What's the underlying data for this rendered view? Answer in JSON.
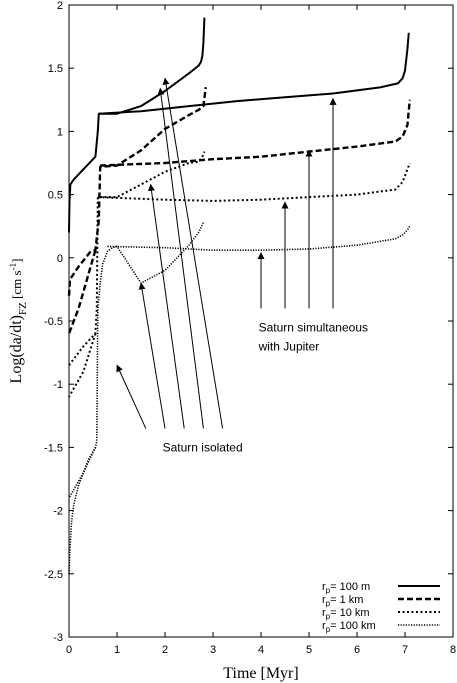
{
  "chart_data": {
    "type": "line",
    "xlabel": "Time [Myr]",
    "ylabel_main": "Log(da/dt)",
    "ylabel_sub": "FZ",
    "ylabel_unit_pre": " [cm s",
    "ylabel_unit_exp": "-1",
    "ylabel_unit_post": "]",
    "xlim": [
      0,
      8
    ],
    "ylim": [
      -3,
      2
    ],
    "x_ticks": [
      "0",
      "1",
      "2",
      "3",
      "4",
      "5",
      "6",
      "7",
      "8"
    ],
    "y_ticks": [
      "-3",
      "-2.5",
      "-2",
      "-1.5",
      "-1",
      "-0.5",
      "0",
      "0.5",
      "1",
      "1.5",
      "2"
    ],
    "legend_position": "bottom-right",
    "series": [
      {
        "name": "100 m",
        "style": "solid",
        "isolated": [
          [
            0,
            0.2
          ],
          [
            0.01,
            0.45
          ],
          [
            0.03,
            0.58
          ],
          [
            0.1,
            0.62
          ],
          [
            0.3,
            0.7
          ],
          [
            0.55,
            0.8
          ],
          [
            0.6,
            1.0
          ],
          [
            0.62,
            1.14
          ],
          [
            1.0,
            1.14
          ],
          [
            1.5,
            1.2
          ],
          [
            2.0,
            1.32
          ],
          [
            2.5,
            1.46
          ],
          [
            2.6,
            1.49
          ],
          [
            2.7,
            1.52
          ],
          [
            2.75,
            1.55
          ],
          [
            2.78,
            1.6
          ],
          [
            2.8,
            1.7
          ],
          [
            2.82,
            1.9
          ]
        ],
        "simultaneous": [
          [
            0.62,
            1.14
          ],
          [
            1.5,
            1.16
          ],
          [
            2.5,
            1.2
          ],
          [
            3.5,
            1.24
          ],
          [
            4.5,
            1.27
          ],
          [
            5.5,
            1.3
          ],
          [
            6.5,
            1.35
          ],
          [
            6.85,
            1.38
          ],
          [
            6.95,
            1.42
          ],
          [
            7.0,
            1.48
          ],
          [
            7.05,
            1.65
          ],
          [
            7.08,
            1.78
          ]
        ]
      },
      {
        "name": "1 km",
        "style": "dashed",
        "isolated": [
          [
            0,
            -0.3
          ],
          [
            0.02,
            -0.17
          ],
          [
            0.2,
            -0.07
          ],
          [
            0.45,
            0.05
          ],
          [
            0.55,
            0.06
          ],
          [
            0.62,
            0.3
          ],
          [
            0.65,
            0.72
          ],
          [
            1.0,
            0.73
          ],
          [
            1.5,
            0.85
          ],
          [
            2.0,
            1.02
          ],
          [
            2.5,
            1.13
          ],
          [
            2.7,
            1.17
          ],
          [
            2.8,
            1.2
          ],
          [
            2.85,
            1.35
          ]
        ],
        "simultaneous": [
          [
            0.65,
            0.73
          ],
          [
            2,
            0.75
          ],
          [
            3,
            0.78
          ],
          [
            4,
            0.8
          ],
          [
            5,
            0.84
          ],
          [
            6,
            0.88
          ],
          [
            6.8,
            0.92
          ],
          [
            6.95,
            0.96
          ],
          [
            7.05,
            1.05
          ],
          [
            7.1,
            1.25
          ]
        ],
        "connector": [
          [
            0.55,
            0.06
          ],
          [
            0.2,
            -0.4
          ],
          [
            0,
            -0.6
          ]
        ]
      },
      {
        "name": "10 km",
        "style": "dotted",
        "isolated": [
          [
            0,
            -0.85
          ],
          [
            0.3,
            -0.7
          ],
          [
            0.55,
            -0.6
          ],
          [
            0.58,
            -0.4
          ],
          [
            0.6,
            0.48
          ],
          [
            1.0,
            0.48
          ],
          [
            1.5,
            0.58
          ],
          [
            2.0,
            0.68
          ],
          [
            2.5,
            0.75
          ],
          [
            2.7,
            0.76
          ],
          [
            2.78,
            0.8
          ],
          [
            2.82,
            0.84
          ]
        ],
        "simultaneous": [
          [
            0.6,
            0.48
          ],
          [
            2,
            0.46
          ],
          [
            3,
            0.45
          ],
          [
            4,
            0.46
          ],
          [
            5,
            0.48
          ],
          [
            6,
            0.5
          ],
          [
            6.8,
            0.54
          ],
          [
            6.95,
            0.6
          ],
          [
            7.05,
            0.7
          ],
          [
            7.1,
            0.75
          ]
        ],
        "connector": [
          [
            0.55,
            -0.6
          ],
          [
            0.3,
            -0.9
          ],
          [
            0,
            -1.1
          ]
        ]
      },
      {
        "name": "100 km",
        "style": "fine-dotted",
        "isolated": [
          [
            0,
            -2.5
          ],
          [
            0.02,
            -2.3
          ],
          [
            0.05,
            -2.1
          ],
          [
            0.1,
            -1.95
          ],
          [
            0.2,
            -1.8
          ],
          [
            0.4,
            -1.6
          ],
          [
            0.55,
            -1.5
          ],
          [
            0.58,
            -1.45
          ],
          [
            0.6,
            -0.4
          ],
          [
            0.65,
            -0.2
          ],
          [
            0.7,
            -0.05
          ],
          [
            0.8,
            0.05
          ],
          [
            0.9,
            0.08
          ],
          [
            1.0,
            0.09
          ],
          [
            1.5,
            -0.2
          ],
          [
            2.0,
            -0.1
          ],
          [
            2.5,
            0.1
          ],
          [
            2.7,
            0.2
          ],
          [
            2.8,
            0.28
          ]
        ],
        "simultaneous": [
          [
            0.8,
            0.09
          ],
          [
            2,
            0.08
          ],
          [
            3,
            0.06
          ],
          [
            4,
            0.06
          ],
          [
            5,
            0.07
          ],
          [
            6,
            0.1
          ],
          [
            6.8,
            0.15
          ],
          [
            6.95,
            0.18
          ],
          [
            7.05,
            0.22
          ],
          [
            7.1,
            0.25
          ]
        ],
        "connector": [
          [
            0.55,
            -1.5
          ],
          [
            0.3,
            -1.7
          ],
          [
            0,
            -1.9
          ]
        ]
      }
    ],
    "annotations": [
      {
        "text": "Saturn isolated",
        "text_x": 1.95,
        "text_y": -1.5,
        "arrows": [
          [
            [
              1.6,
              -1.35
            ],
            [
              1.0,
              -0.85
            ]
          ],
          [
            [
              2.0,
              -1.35
            ],
            [
              1.5,
              -0.2
            ]
          ],
          [
            [
              2.4,
              -1.35
            ],
            [
              1.7,
              0.58
            ]
          ],
          [
            [
              2.8,
              -1.35
            ],
            [
              1.9,
              1.34
            ]
          ],
          [
            [
              3.2,
              -1.35
            ],
            [
              2.0,
              1.42
            ]
          ]
        ]
      },
      {
        "text": "Saturn simultaneous",
        "text2": "with Jupiter",
        "text_x": 3.95,
        "text_y": -0.55,
        "text2_y": -0.7,
        "arrows": [
          [
            [
              4.0,
              -0.4
            ],
            [
              4.0,
              0.04
            ]
          ],
          [
            [
              4.5,
              -0.4
            ],
            [
              4.5,
              0.44
            ]
          ],
          [
            [
              5.0,
              -0.4
            ],
            [
              5.0,
              0.85
            ]
          ],
          [
            [
              5.5,
              -0.4
            ],
            [
              5.5,
              1.26
            ]
          ]
        ]
      }
    ],
    "legend": [
      {
        "prefix": "r",
        "sub": "p",
        "label": "=   100 m",
        "style": "solid"
      },
      {
        "prefix": "r",
        "sub": "p",
        "label": "=     1 km",
        "style": "dashed"
      },
      {
        "prefix": "r",
        "sub": "p",
        "label": "=   10 km",
        "style": "dotted"
      },
      {
        "prefix": "r",
        "sub": "p",
        "label": "= 100 km",
        "style": "fine-dotted"
      }
    ]
  }
}
